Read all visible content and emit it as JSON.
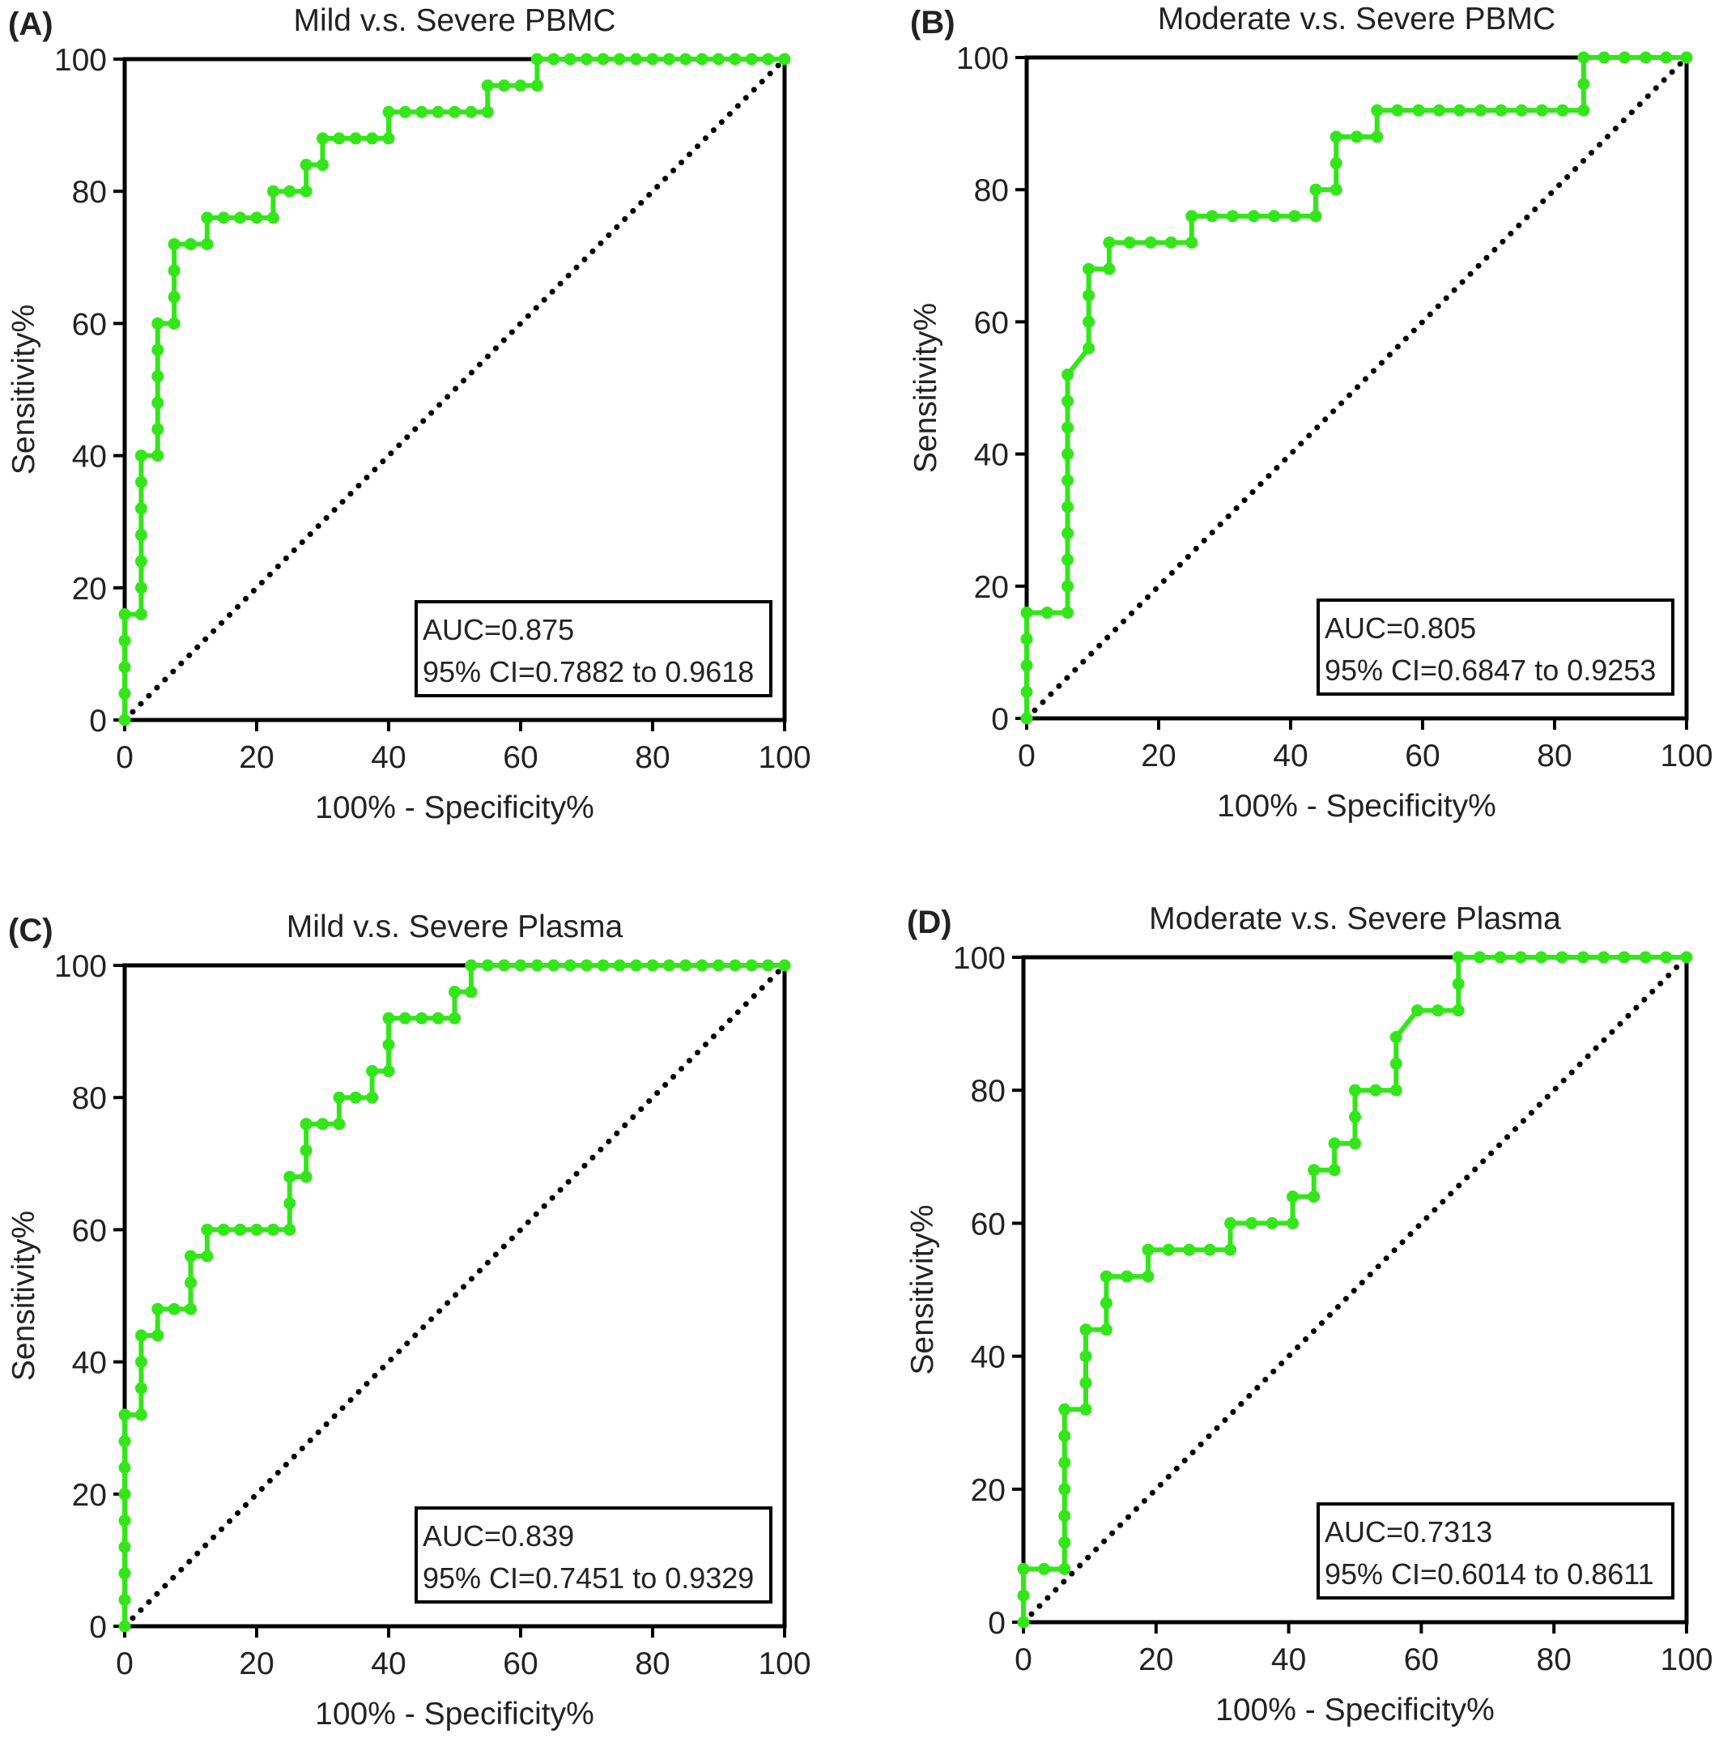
{
  "chart_data": [
    {
      "type": "line",
      "panel": "(A)",
      "title": "Mild v.s. Severe PBMC",
      "xlabel": "100% - Specificity%",
      "ylabel": "Sensitivity%",
      "xlim": [
        0,
        100
      ],
      "ylim": [
        0,
        100
      ],
      "xticks": [
        0,
        20,
        40,
        60,
        80,
        100
      ],
      "yticks": [
        0,
        20,
        40,
        60,
        80,
        100
      ],
      "grid": false,
      "annotation": {
        "auc": "AUC=0.875",
        "ci": "95% CI=0.7882 to 0.9618"
      },
      "reference_line": {
        "x": [
          0,
          100
        ],
        "y": [
          0,
          100
        ],
        "style": "dotted",
        "color": "#000000"
      },
      "series": [
        {
          "color": "#33e619",
          "x": [
            0,
            0,
            0,
            0,
            0,
            2.5,
            2.5,
            2.5,
            2.5,
            2.5,
            2.5,
            2.5,
            5,
            5,
            5,
            5,
            5,
            5,
            7.5,
            7.5,
            7.5,
            7.5,
            10,
            12.5,
            12.5,
            15,
            17.5,
            20,
            22.5,
            22.5,
            25,
            27.5,
            27.5,
            30,
            30,
            32.5,
            35,
            37.5,
            40,
            40,
            42.5,
            45,
            47.5,
            50,
            52.5,
            55,
            55,
            57.5,
            60,
            62.5,
            62.5,
            65,
            67.5,
            70,
            72.5,
            75,
            77.5,
            80,
            82.5,
            85,
            87.5,
            90,
            92.5,
            95,
            97.5,
            100
          ],
          "y": [
            0,
            4,
            8,
            12,
            16,
            16,
            20,
            24,
            28,
            32,
            36,
            40,
            40,
            44,
            48,
            52,
            56,
            60,
            60,
            64,
            68,
            72,
            72,
            72,
            76,
            76,
            76,
            76,
            76,
            80,
            80,
            80,
            84,
            84,
            88,
            88,
            88,
            88,
            88,
            92,
            92,
            92,
            92,
            92,
            92,
            92,
            96,
            96,
            96,
            96,
            100,
            100,
            100,
            100,
            100,
            100,
            100,
            100,
            100,
            100,
            100,
            100,
            100,
            100,
            100,
            100
          ]
        }
      ]
    },
    {
      "type": "line",
      "panel": "(B)",
      "title": "Moderate v.s. Severe PBMC",
      "xlabel": "100% - Specificity%",
      "ylabel": "Sensitivity%",
      "xlim": [
        0,
        100
      ],
      "ylim": [
        0,
        100
      ],
      "xticks": [
        0,
        20,
        40,
        60,
        80,
        100
      ],
      "yticks": [
        0,
        20,
        40,
        60,
        80,
        100
      ],
      "grid": false,
      "annotation": {
        "auc": "AUC=0.805",
        "ci": "95% CI=0.6847 to 0.9253"
      },
      "reference_line": {
        "x": [
          0,
          100
        ],
        "y": [
          0,
          100
        ],
        "style": "dotted",
        "color": "#000000"
      },
      "series": [
        {
          "color": "#33e619",
          "x": [
            0,
            0,
            0,
            0,
            0,
            3.1,
            6.2,
            6.2,
            6.2,
            6.2,
            6.2,
            6.2,
            6.2,
            6.2,
            6.2,
            6.2,
            9.4,
            9.4,
            9.4,
            9.4,
            12.5,
            12.5,
            15.6,
            18.8,
            21.9,
            25,
            25,
            28.1,
            31.2,
            34.4,
            37.5,
            40.6,
            43.8,
            43.8,
            46.9,
            46.9,
            46.9,
            50,
            53.1,
            53.1,
            56.2,
            59.4,
            62.5,
            65.6,
            68.8,
            71.9,
            75,
            78.1,
            81.2,
            84.4,
            84.4,
            84.4,
            87.5,
            90.6,
            93.8,
            96.9,
            100
          ],
          "y": [
            0,
            4,
            8,
            12,
            16,
            16,
            16,
            20,
            24,
            28,
            32,
            36,
            40,
            44,
            48,
            52,
            56,
            60,
            64,
            68,
            68,
            72,
            72,
            72,
            72,
            72,
            76,
            76,
            76,
            76,
            76,
            76,
            76,
            80,
            80,
            84,
            88,
            88,
            88,
            92,
            92,
            92,
            92,
            92,
            92,
            92,
            92,
            92,
            92,
            92,
            96,
            100,
            100,
            100,
            100,
            100,
            100
          ]
        }
      ]
    },
    {
      "type": "line",
      "panel": "(C)",
      "title": "Mild v.s. Severe Plasma",
      "xlabel": "100% - Specificity%",
      "ylabel": "Sensitivity%",
      "xlim": [
        0,
        100
      ],
      "ylim": [
        0,
        100
      ],
      "xticks": [
        0,
        20,
        40,
        60,
        80,
        100
      ],
      "yticks": [
        0,
        20,
        40,
        60,
        80,
        100
      ],
      "grid": false,
      "annotation": {
        "auc": "AUC=0.839",
        "ci": "95% CI=0.7451 to 0.9329"
      },
      "reference_line": {
        "x": [
          0,
          100
        ],
        "y": [
          0,
          100
        ],
        "style": "dotted",
        "color": "#000000"
      },
      "series": [
        {
          "color": "#33e619",
          "x": [
            0,
            0,
            0,
            0,
            0,
            0,
            0,
            0,
            0,
            2.5,
            2.5,
            2.5,
            2.5,
            5,
            5,
            7.5,
            10,
            10,
            10,
            12.5,
            12.5,
            15,
            17.5,
            20,
            22.5,
            25,
            25,
            25,
            27.5,
            27.5,
            27.5,
            30,
            32.5,
            32.5,
            35,
            37.5,
            37.5,
            40,
            40,
            40,
            42.5,
            45,
            47.5,
            50,
            50,
            52.5,
            52.5,
            55,
            57.5,
            60,
            62.5,
            65,
            67.5,
            70,
            72.5,
            75,
            77.5,
            80,
            82.5,
            85,
            87.5,
            90,
            92.5,
            95,
            97.5,
            100
          ],
          "y": [
            0,
            4,
            8,
            12,
            16,
            20,
            24,
            28,
            32,
            32,
            36,
            40,
            44,
            44,
            48,
            48,
            48,
            52,
            56,
            56,
            60,
            60,
            60,
            60,
            60,
            60,
            64,
            68,
            68,
            72,
            76,
            76,
            76,
            80,
            80,
            80,
            84,
            84,
            88,
            92,
            92,
            92,
            92,
            92,
            96,
            96,
            100,
            100,
            100,
            100,
            100,
            100,
            100,
            100,
            100,
            100,
            100,
            100,
            100,
            100,
            100,
            100,
            100,
            100,
            100,
            100
          ]
        }
      ]
    },
    {
      "type": "line",
      "panel": "(D)",
      "title": "Moderate v.s. Severe Plasma",
      "xlabel": "100% - Specificity%",
      "ylabel": "Sensitivity%",
      "xlim": [
        0,
        100
      ],
      "ylim": [
        0,
        100
      ],
      "xticks": [
        0,
        20,
        40,
        60,
        80,
        100
      ],
      "yticks": [
        0,
        20,
        40,
        60,
        80,
        100
      ],
      "grid": false,
      "annotation": {
        "auc": "AUC=0.7313",
        "ci": "95% CI=0.6014 to 0.8611"
      },
      "reference_line": {
        "x": [
          0,
          100
        ],
        "y": [
          0,
          100
        ],
        "style": "dotted",
        "color": "#000000"
      },
      "series": [
        {
          "color": "#33e619",
          "x": [
            0,
            0,
            0,
            3.1,
            6.2,
            6.2,
            6.2,
            6.2,
            6.2,
            6.2,
            6.2,
            9.4,
            9.4,
            9.4,
            9.4,
            12.5,
            12.5,
            12.5,
            15.6,
            18.8,
            18.8,
            21.9,
            25,
            28.1,
            31.2,
            31.2,
            34.4,
            37.5,
            40.6,
            40.6,
            43.8,
            43.8,
            46.9,
            46.9,
            50,
            50,
            50,
            53.1,
            56.2,
            56.2,
            56.2,
            59.4,
            62.5,
            65.6,
            65.6,
            65.6,
            68.8,
            71.9,
            75,
            78.1,
            81.2,
            84.4,
            87.5,
            90.6,
            93.8,
            96.9,
            100
          ],
          "y": [
            0,
            4,
            8,
            8,
            8,
            12,
            16,
            20,
            24,
            28,
            32,
            32,
            36,
            40,
            44,
            44,
            48,
            52,
            52,
            52,
            56,
            56,
            56,
            56,
            56,
            60,
            60,
            60,
            60,
            64,
            64,
            68,
            68,
            72,
            72,
            76,
            80,
            80,
            80,
            84,
            88,
            92,
            92,
            92,
            96,
            100,
            100,
            100,
            100,
            100,
            100,
            100,
            100,
            100,
            100,
            100,
            100
          ]
        }
      ]
    }
  ]
}
